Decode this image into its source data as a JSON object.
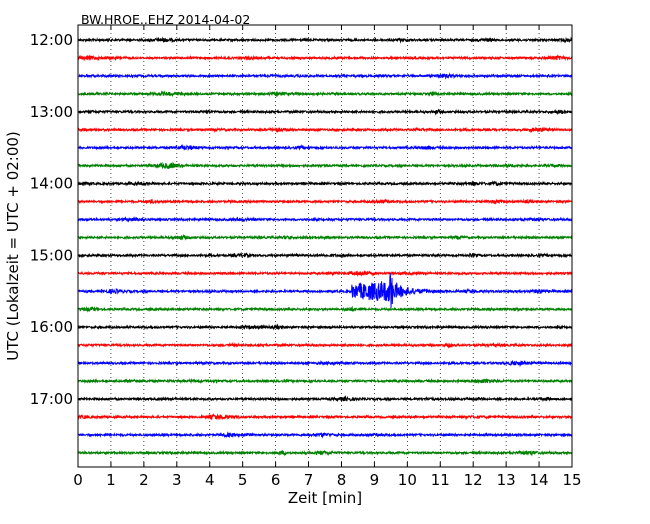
{
  "chart_data": {
    "type": "line",
    "title": "BW.HROE..EHZ 2014-04-02",
    "xlabel": "Zeit  [min]",
    "ylabel": "UTC (Lokalzeit = UTC + 02:00)",
    "xlim": [
      0,
      15
    ],
    "x_ticks": [
      "0",
      "1",
      "2",
      "3",
      "4",
      "5",
      "6",
      "7",
      "8",
      "9",
      "10",
      "11",
      "12",
      "13",
      "14",
      "15"
    ],
    "y_ticks": [
      "12:00",
      "13:00",
      "14:00",
      "15:00",
      "16:00",
      "17:00"
    ],
    "grid": "vertical dotted",
    "traces_per_hour": 4,
    "trace_colors": [
      "#000000",
      "#ff0000",
      "#0000ff",
      "#008000"
    ],
    "traces": [
      {
        "start": "12:00",
        "color": "#000000"
      },
      {
        "start": "12:15",
        "color": "#ff0000"
      },
      {
        "start": "12:30",
        "color": "#0000ff"
      },
      {
        "start": "12:45",
        "color": "#008000"
      },
      {
        "start": "13:00",
        "color": "#000000"
      },
      {
        "start": "13:15",
        "color": "#ff0000"
      },
      {
        "start": "13:30",
        "color": "#0000ff"
      },
      {
        "start": "13:45",
        "color": "#008000"
      },
      {
        "start": "14:00",
        "color": "#000000"
      },
      {
        "start": "14:15",
        "color": "#ff0000"
      },
      {
        "start": "14:30",
        "color": "#0000ff"
      },
      {
        "start": "14:45",
        "color": "#008000"
      },
      {
        "start": "15:00",
        "color": "#000000"
      },
      {
        "start": "15:15",
        "color": "#ff0000"
      },
      {
        "start": "15:30",
        "color": "#0000ff",
        "event": {
          "onset_min": 8.3,
          "peak_min": 9.5,
          "end_min": 11.5
        }
      },
      {
        "start": "15:45",
        "color": "#008000"
      },
      {
        "start": "16:00",
        "color": "#000000"
      },
      {
        "start": "16:15",
        "color": "#ff0000"
      },
      {
        "start": "16:30",
        "color": "#0000ff"
      },
      {
        "start": "16:45",
        "color": "#008000"
      },
      {
        "start": "17:00",
        "color": "#000000"
      },
      {
        "start": "17:15",
        "color": "#ff0000"
      },
      {
        "start": "17:30",
        "color": "#0000ff"
      },
      {
        "start": "17:45",
        "color": "#008000"
      }
    ]
  }
}
